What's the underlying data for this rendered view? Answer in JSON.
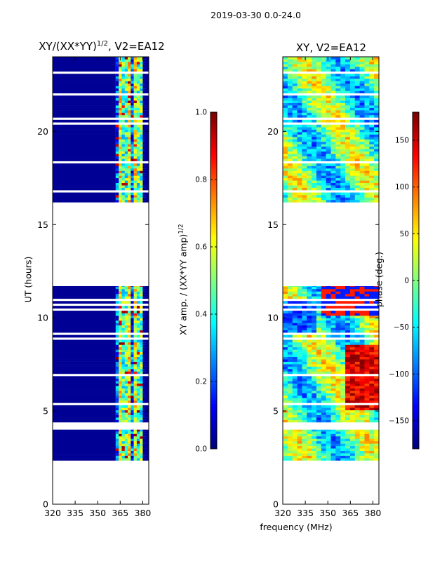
{
  "suptitle": "2019-03-30 0.0-24.0",
  "chart_data": [
    {
      "type": "heatmap",
      "title_main": "XY/(XX*YY)",
      "title_exp": "1/2",
      "title_tail": ", V2=EA12",
      "xlabel": "",
      "ylabel": "UT (hours)",
      "xlim": [
        320,
        384
      ],
      "ylim": [
        0,
        24
      ],
      "xticks": [
        320,
        335,
        350,
        365,
        380
      ],
      "yticks": [
        0,
        5,
        10,
        15,
        20
      ],
      "colorbar": {
        "label_main": "XY amp. / (XX*YY amp)",
        "label_exp": "1/2",
        "range": [
          0.0,
          1.0
        ],
        "ticks": [
          "0.0",
          "0.2",
          "0.4",
          "0.6",
          "0.8",
          "1.0"
        ],
        "colormap": "jet"
      },
      "data_time_ranges_hours": [
        [
          2.35,
          4.0
        ],
        [
          4.4,
          11.7
        ],
        [
          16.2,
          24.0
        ]
      ],
      "flagged_gap_hours": [
        [
          0.0,
          2.35
        ],
        [
          4.0,
          4.4
        ],
        [
          11.7,
          16.2
        ]
      ],
      "low_amplitude_band_mhz": [
        320,
        362
      ],
      "high_amplitude_band_mhz": [
        362,
        380
      ]
    },
    {
      "type": "heatmap",
      "title": "XY, V2=EA12",
      "xlabel": "frequency (MHz)",
      "ylabel": "",
      "xlim": [
        320,
        384
      ],
      "ylim": [
        0,
        24
      ],
      "xticks": [
        320,
        335,
        350,
        365,
        380
      ],
      "yticks": [
        0,
        5,
        10,
        15,
        20
      ],
      "colorbar": {
        "label": "phase (deg.)",
        "range": [
          -180,
          180
        ],
        "ticks": [
          "150",
          "100",
          "50",
          "0",
          "−50",
          "−100",
          "−150"
        ],
        "tick_values": [
          150,
          100,
          50,
          0,
          -50,
          -100,
          -150
        ],
        "colormap": "jet"
      },
      "data_time_ranges_hours": [
        [
          2.35,
          4.0
        ],
        [
          4.4,
          11.7
        ],
        [
          16.2,
          24.0
        ]
      ]
    }
  ]
}
